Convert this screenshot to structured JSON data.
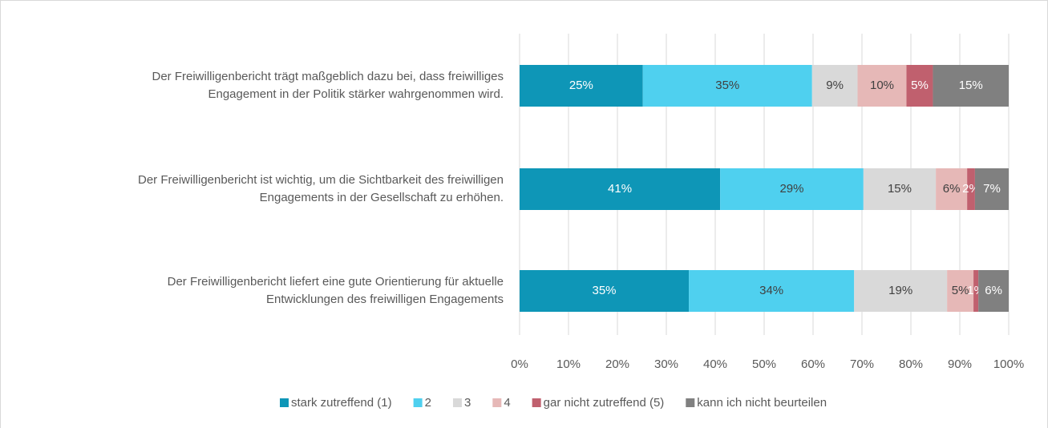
{
  "chart_data": {
    "type": "stacked-bar-horizontal",
    "categories": [
      "Der Freiwilligenbericht trägt maßgeblich dazu bei, dass freiwilliges\nEngagement in der Politik stärker wahrgenommen wird.",
      "Der Freiwilligenbericht ist wichtig, um die Sichtbarkeit des freiwilligen\nEngagements in der Gesellschaft zu erhöhen.",
      "Der Freiwilligenbericht liefert eine gute Orientierung für aktuelle\nEntwicklungen des freiwilligen Engagements"
    ],
    "series": [
      {
        "name": "stark zutreffend (1)",
        "color": "#0e96b7",
        "values": [
          25.2,
          41.0,
          34.6
        ],
        "value_labels": [
          "25%",
          "41%",
          "35%"
        ]
      },
      {
        "name": "2",
        "color": "#4fd0ef",
        "values": [
          34.6,
          29.3,
          33.8
        ],
        "value_labels": [
          "35%",
          "29%",
          "34%"
        ]
      },
      {
        "name": "3",
        "color": "#d9d9d9",
        "values": [
          9.3,
          14.8,
          19.0
        ],
        "value_labels": [
          "9%",
          "15%",
          "19%"
        ]
      },
      {
        "name": "4",
        "color": "#e6b8b7",
        "values": [
          10.0,
          6.4,
          5.4
        ],
        "value_labels": [
          "10%",
          "6%",
          "5%"
        ]
      },
      {
        "name": "gar nicht zutreffend (5)",
        "color": "#c0606e",
        "values": [
          5.4,
          1.6,
          1.0
        ],
        "value_labels": [
          "5%",
          "2%",
          "1%"
        ]
      },
      {
        "name": "kann ich nicht beurteilen",
        "color": "#808080",
        "values": [
          15.5,
          6.9,
          6.2
        ],
        "value_labels": [
          "15%",
          "7%",
          "6%"
        ]
      }
    ],
    "xlim": [
      0,
      100
    ],
    "xticks": [
      {
        "value": 0,
        "label": "0%"
      },
      {
        "value": 10,
        "label": "10%"
      },
      {
        "value": 20,
        "label": "20%"
      },
      {
        "value": 30,
        "label": "30%"
      },
      {
        "value": 40,
        "label": "40%"
      },
      {
        "value": 50,
        "label": "50%"
      },
      {
        "value": 60,
        "label": "60%"
      },
      {
        "value": 70,
        "label": "70%"
      },
      {
        "value": 80,
        "label": "80%"
      },
      {
        "value": 90,
        "label": "90%"
      },
      {
        "value": 100,
        "label": "100%"
      }
    ],
    "grid": true,
    "legend": "bottom"
  }
}
